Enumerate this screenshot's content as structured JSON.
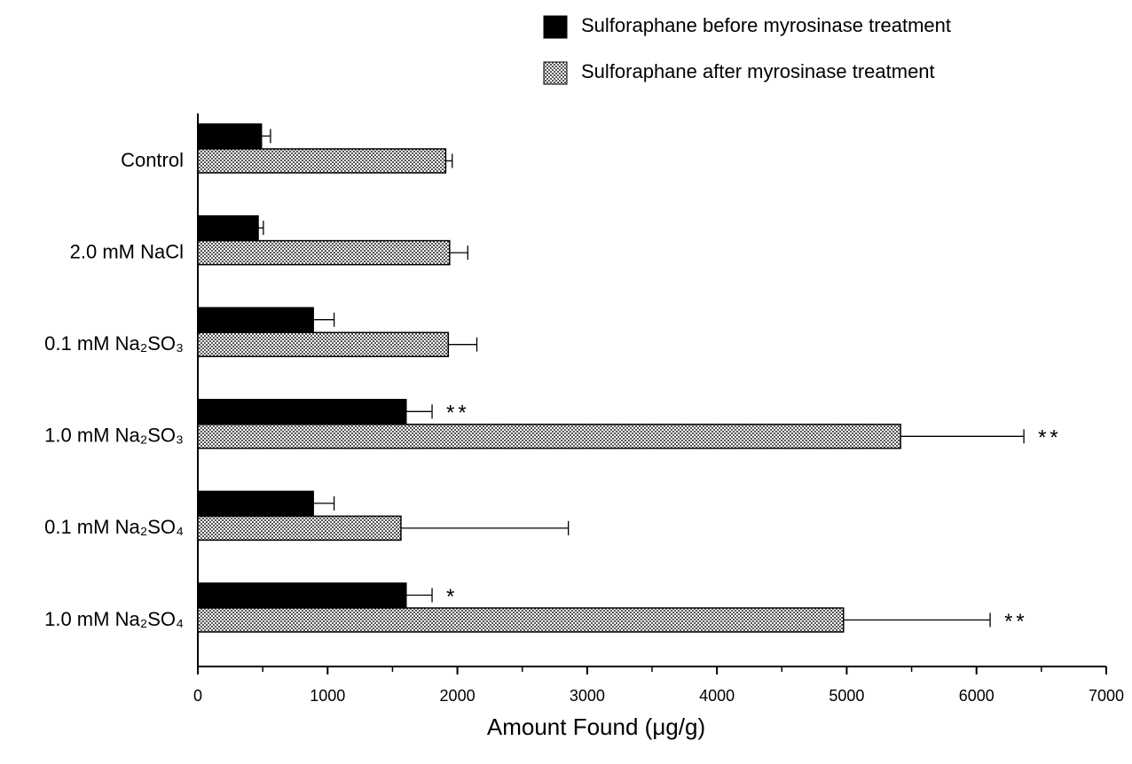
{
  "chart_data": {
    "type": "hbar",
    "xlabel": "Amount Found (μg/g)",
    "categories": [
      "Control",
      "2.0 mM NaCl",
      "0.1 mM Na₂SO₃",
      "1.0 mM Na₂SO₃",
      "0.1 mM Na₂SO₄",
      "1.0 mM Na₂SO₄"
    ],
    "series": [
      {
        "name": "Sulforaphane  before myrosinase treatment",
        "color": "#000000",
        "pattern": "solid",
        "values": [
          490,
          465,
          890,
          1605,
          890,
          1605
        ],
        "errors": [
          70,
          40,
          160,
          200,
          160,
          200
        ],
        "significance": [
          null,
          null,
          null,
          "**",
          null,
          "*"
        ]
      },
      {
        "name": "Sulforaphane  after myrosinase treatment",
        "color": "#7a7a7a",
        "pattern": "checker",
        "values": [
          1910,
          1940,
          1930,
          5415,
          1565,
          4975
        ],
        "errors": [
          50,
          140,
          220,
          950,
          1290,
          1130
        ],
        "significance": [
          null,
          null,
          null,
          "**",
          null,
          "**"
        ]
      }
    ],
    "xlim": [
      0,
      7000
    ],
    "xticks": [
      0,
      1000,
      2000,
      3000,
      4000,
      5000,
      6000,
      7000
    ],
    "xminorticks": [
      500,
      1500,
      2500,
      3500,
      4500,
      5500,
      6500
    ],
    "legend": "top-right"
  }
}
